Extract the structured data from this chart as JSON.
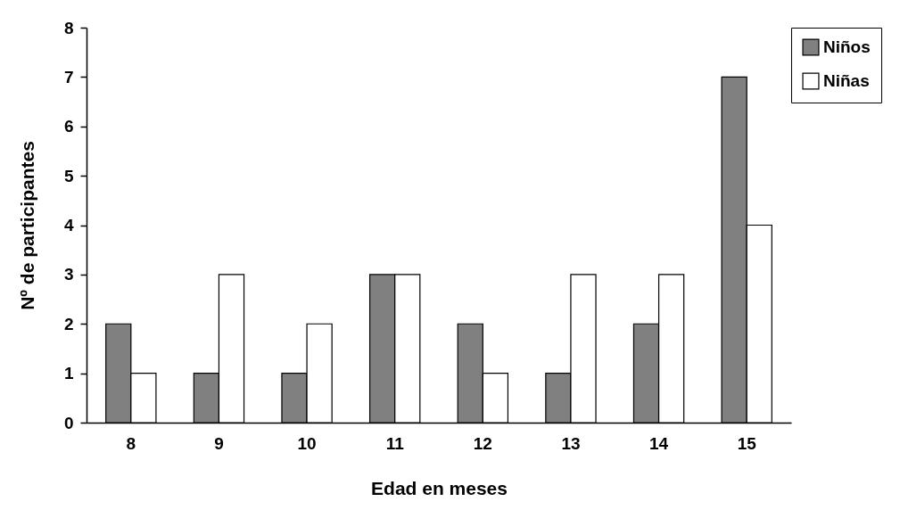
{
  "chart_data": {
    "type": "bar",
    "xlabel": "Edad en meses",
    "ylabel": "Nº de participantes",
    "categories": [
      "8",
      "9",
      "10",
      "11",
      "12",
      "13",
      "14",
      "15"
    ],
    "series": [
      {
        "name": "Niños",
        "color": "#808080",
        "values": [
          2,
          1,
          1,
          3,
          2,
          1,
          2,
          7
        ]
      },
      {
        "name": "Niñas",
        "color": "#ffffff",
        "values": [
          1,
          3,
          2,
          3,
          1,
          3,
          3,
          4
        ]
      }
    ],
    "ylim": [
      0,
      8
    ],
    "yticks": [
      0,
      1,
      2,
      3,
      4,
      5,
      6,
      7,
      8
    ],
    "grid": false,
    "legend": "right"
  }
}
